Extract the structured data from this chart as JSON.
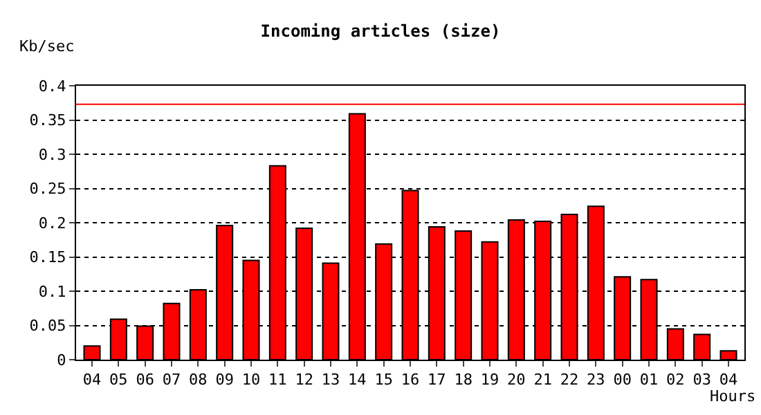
{
  "chart_data": {
    "type": "bar",
    "title": "Incoming articles (size)",
    "ylabel": "Kb/sec",
    "xlabel": "Hours",
    "categories": [
      "04",
      "05",
      "06",
      "07",
      "08",
      "09",
      "10",
      "11",
      "12",
      "13",
      "14",
      "15",
      "16",
      "17",
      "18",
      "19",
      "20",
      "21",
      "22",
      "23",
      "00",
      "01",
      "02",
      "03",
      "04"
    ],
    "values": [
      0.02,
      0.059,
      0.049,
      0.082,
      0.102,
      0.196,
      0.145,
      0.283,
      0.192,
      0.141,
      0.359,
      0.169,
      0.247,
      0.194,
      0.188,
      0.172,
      0.204,
      0.202,
      0.212,
      0.224,
      0.121,
      0.117,
      0.045,
      0.037,
      0.013
    ],
    "color": "#ff0000",
    "ylim": [
      0,
      0.4
    ],
    "yticks": [
      0,
      0.05,
      0.1,
      0.15,
      0.2,
      0.25,
      0.3,
      0.35,
      0.4
    ],
    "grid": "y",
    "line_style": "dotted",
    "ref_lines": [
      {
        "axis": "y",
        "value": 0.373,
        "color": "#ff0000"
      }
    ]
  }
}
